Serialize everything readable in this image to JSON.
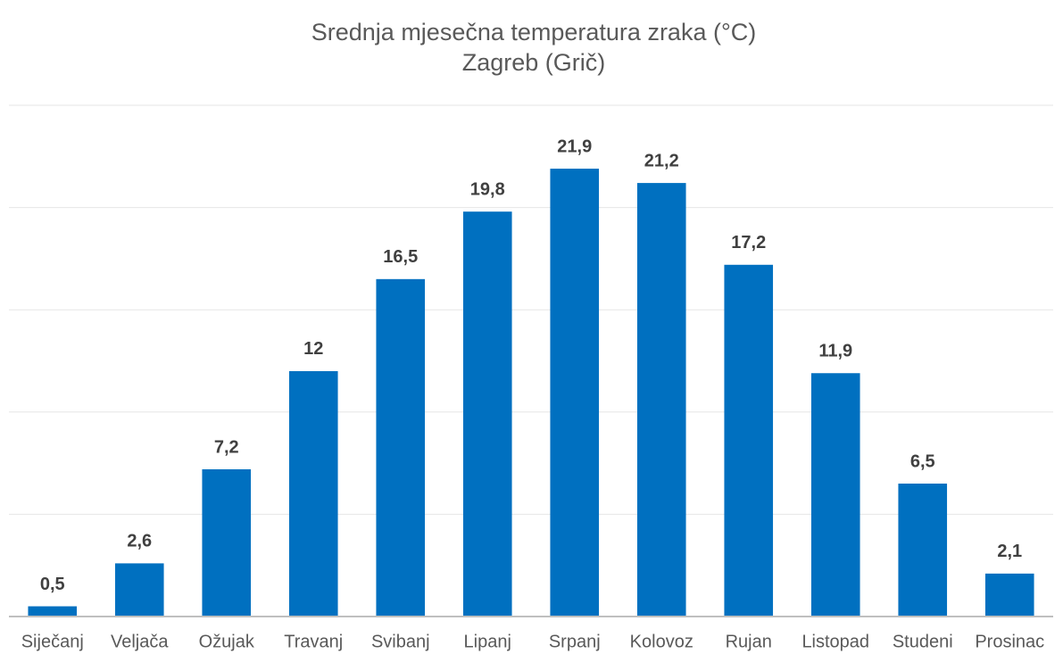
{
  "chart_data": {
    "type": "bar",
    "title": "Srednja mjesečna temperatura zraka (°C)",
    "subtitle": "Zagreb (Grič)",
    "categories": [
      "Siječanj",
      "Veljača",
      "Ožujak",
      "Travanj",
      "Svibanj",
      "Lipanj",
      "Srpanj",
      "Kolovoz",
      "Rujan",
      "Listopad",
      "Studeni",
      "Prosinac"
    ],
    "values": [
      0.5,
      2.6,
      7.2,
      12,
      16.5,
      19.8,
      21.9,
      21.2,
      17.2,
      11.9,
      6.5,
      2.1
    ],
    "value_labels": [
      "0,5",
      "2,6",
      "7,2",
      "12",
      "16,5",
      "19,8",
      "21,9",
      "21,2",
      "17,2",
      "11,9",
      "6,5",
      "2,1"
    ],
    "color": "#0070c0",
    "ylim": [
      0,
      25
    ],
    "yticks": [
      0,
      5,
      10,
      15,
      20,
      25
    ],
    "grid": true
  }
}
